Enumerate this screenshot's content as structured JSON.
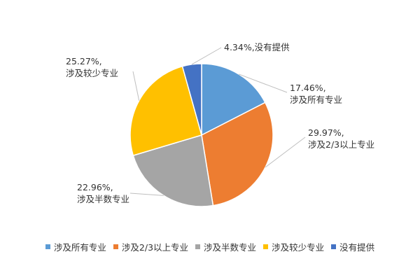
{
  "chart_data": {
    "type": "pie",
    "categories": [
      "涉及所有专业",
      "涉及2/3以上专业",
      "涉及半数专业",
      "涉及较少专业",
      "没有提供"
    ],
    "values": [
      17.46,
      29.97,
      22.96,
      25.27,
      4.34
    ],
    "data_labels": [
      {
        "value": "17.46%,",
        "category": "涉及所有专业"
      },
      {
        "value": "29.97%,",
        "category": "涉及2/3以上专业"
      },
      {
        "value": "22.96%,",
        "category": "涉及半数专业"
      },
      {
        "value": "25.27%,",
        "category": "涉及较少专业"
      },
      {
        "value": "4.34%,",
        "category": "没有提供"
      }
    ],
    "colors": [
      "#5B9BD5",
      "#ED7D31",
      "#A5A5A5",
      "#FFC000",
      "#4472C4"
    ],
    "legend_placement": "bottom",
    "title": ""
  }
}
